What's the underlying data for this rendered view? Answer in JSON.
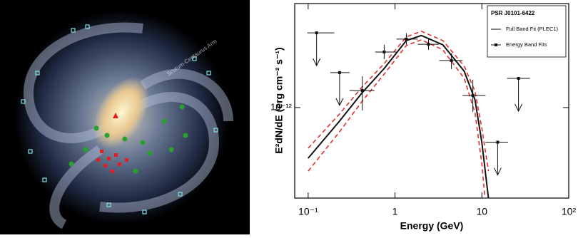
{
  "image": {
    "labels": [
      "Scutum-Centaurus Arm"
    ]
  },
  "chart_data": {
    "type": "line",
    "x_label": "Energy (GeV)",
    "y_label": "E²dN/dE (erg cm⁻² s⁻¹)",
    "legend_title": "PSR J0101-6422",
    "legend": "upper right",
    "xlog": true,
    "ylog": true,
    "xlim": [
      0.07,
      100
    ],
    "ylim": [
      1.24e-13,
      1.1e-11
    ],
    "xticks": [
      {
        "value": 0.1,
        "label": "10⁻¹"
      },
      1,
      10,
      {
        "value": 100,
        "label": "10²"
      }
    ],
    "yticks": [
      {
        "value": 1e-12,
        "label": "10⁻¹²"
      }
    ],
    "x": [
      0.1,
      0.229,
      0.419,
      0.753,
      1.35,
      2.01,
      3.55,
      6.26,
      8.33,
      10,
      11.9
    ],
    "series": [
      {
        "name": "Full Band Fit (PLEC1)",
        "color": "#111111",
        "values": [
          3.11e-13,
          7.3e-13,
          1.41e-12,
          2.47e-12,
          4.69e-12,
          5.27e-12,
          4.25e-12,
          2.31e-12,
          1.2e-12,
          4.47e-13,
          1.24e-13
        ]
      },
      {
        "color": "#e03030",
        "dashed": true,
        "values": [
          3.92e-13,
          8.6e-13,
          1.61e-12,
          2.77e-12,
          5.1e-12,
          5.81e-12,
          4.69e-12,
          2.6e-12,
          1.46e-12,
          6.2e-13,
          2.31e-13
        ]
      },
      {
        "color": "#e03030",
        "dashed": true,
        "values": [
          2.31e-13,
          5.7e-13,
          1.16e-12,
          2.17e-12,
          4.18e-12,
          4.77e-12,
          3.79e-12,
          1.96e-12,
          8.9e-13,
          2.73e-13,
          5e-14
        ]
      }
    ],
    "points": {
      "name": "Energy Band Fits",
      "color": "#111111",
      "x": [
        0.125,
        0.23,
        0.42,
        0.75,
        1.35,
        2.43,
        4.46,
        7.87,
        15.2,
        26.4
      ],
      "values": [
        5.6e-12,
        2.24e-12,
        1.48e-12,
        3.6e-12,
        4.85e-12,
        4.3e-12,
        2.96e-12,
        1.32e-12,
        4.5e-13,
        1.96e-12
      ],
      "upper_limit": [
        true,
        true,
        false,
        false,
        false,
        false,
        false,
        false,
        true,
        true
      ],
      "xlow": [
        0.098,
        0.18,
        0.3,
        0.59,
        1.04,
        1.83,
        3.23,
        6.0,
        11,
        19.5
      ],
      "xhigh": [
        0.2,
        0.3,
        0.58,
        1.04,
        1.83,
        3.23,
        6.0,
        11,
        20,
        35.7
      ],
      "ylow": [
        null,
        null,
        9.36e-13,
        3.06e-12,
        4.25e-12,
        3.79e-12,
        2.43e-12,
        9.06e-13,
        null,
        null
      ],
      "yhigh": [
        null,
        null,
        2.06e-12,
        4.25e-12,
        5.54e-12,
        4.85e-12,
        3.49e-12,
        1.9e-12,
        null,
        null
      ]
    }
  }
}
